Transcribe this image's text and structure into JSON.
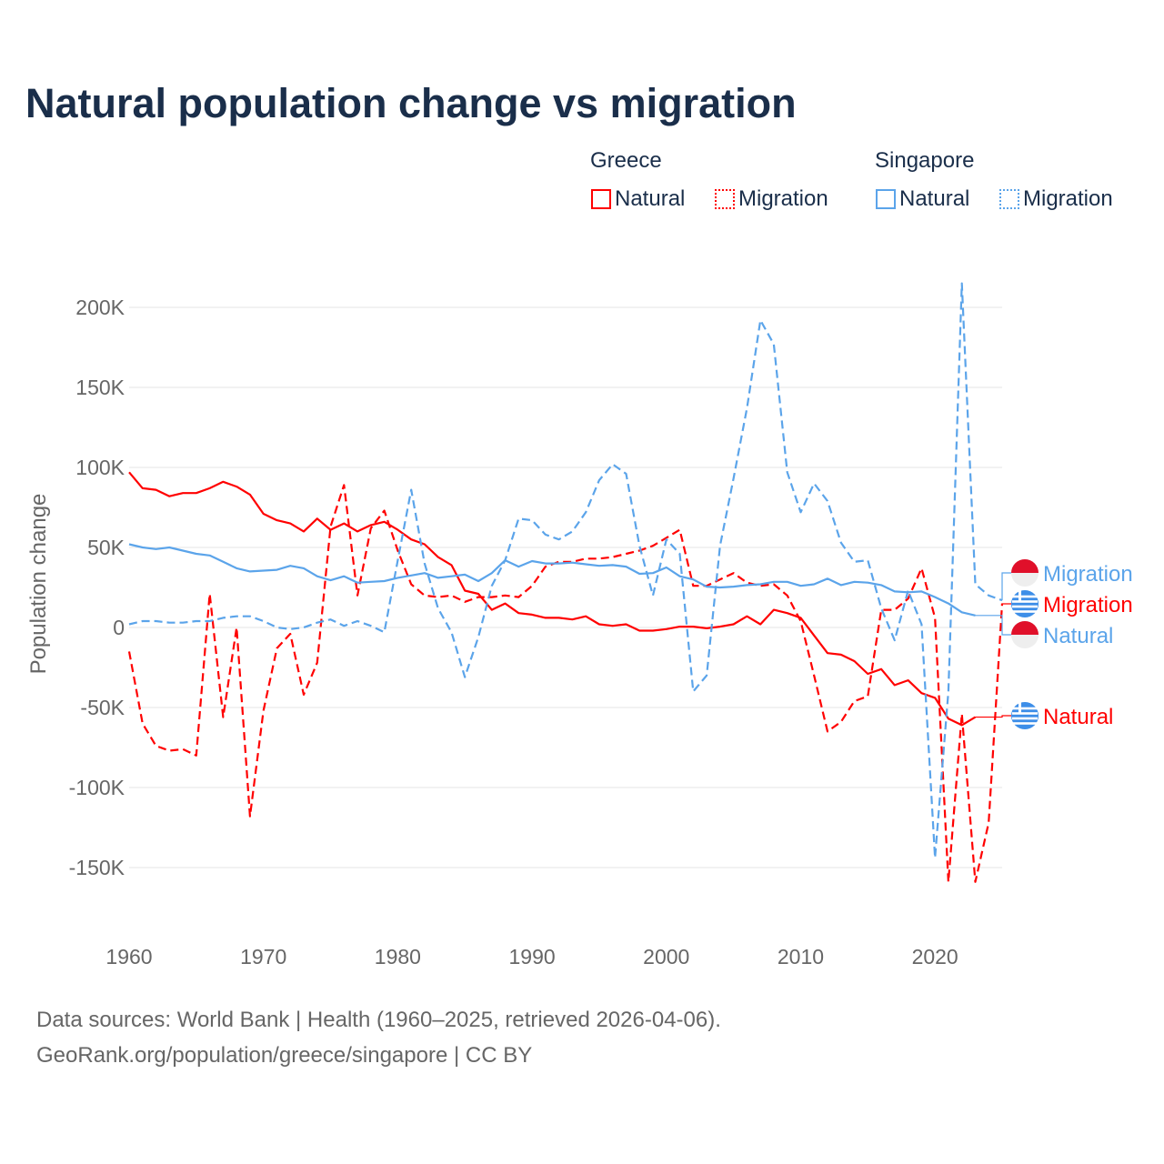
{
  "title": "Natural population change vs migration",
  "legend": {
    "groups": [
      {
        "name": "Greece",
        "color": "#ff0000",
        "items": [
          "Natural",
          "Migration"
        ]
      },
      {
        "name": "Singapore",
        "color": "#5ba4ea",
        "items": [
          "Natural",
          "Migration"
        ]
      }
    ]
  },
  "source_lines": [
    "Data sources: World Bank | Health (1960–2025, retrieved 2026-04-06).",
    "GeoRank.org/population/greece/singapore | CC BY"
  ],
  "chart_data": {
    "type": "line",
    "title": "Natural population change vs migration",
    "xlabel": "",
    "ylabel": "Population change",
    "xlim": [
      1960,
      2025
    ],
    "ylim": [
      -170000,
      220000
    ],
    "xticks": [
      1960,
      1970,
      1980,
      1990,
      2000,
      2010,
      2020
    ],
    "xtick_labels": [
      "1960",
      "1970",
      "1980",
      "1990",
      "2000",
      "2010",
      "2020"
    ],
    "yticks": [
      200000,
      150000,
      100000,
      50000,
      0,
      -50000,
      -100000,
      -150000
    ],
    "ytick_labels": [
      "200K",
      "150K",
      "100K",
      "50K",
      "0",
      "-50K",
      "-100K",
      "-150K"
    ],
    "grid": true,
    "legend_placement": "top-right",
    "series": [
      {
        "name": "Greece Natural",
        "label": "Natural",
        "country": "Greece",
        "flag": "greece-flag",
        "color": "#ff0000",
        "dash": false,
        "start": 1960,
        "values": [
          97,
          87,
          86,
          82,
          84,
          84,
          87,
          91,
          88,
          83,
          71,
          67,
          65,
          60,
          68,
          61,
          65,
          60,
          64,
          66,
          61,
          55,
          52,
          44,
          39,
          23,
          21,
          11,
          15,
          9,
          8,
          6,
          6,
          5,
          7,
          2,
          1,
          2,
          -2,
          -2,
          -1,
          0.5,
          0.5,
          -0.5,
          0.5,
          2,
          7,
          2,
          11,
          9,
          6,
          -5,
          -16,
          -17,
          -21,
          -29,
          -26,
          -36,
          -33,
          -41,
          -44,
          -57,
          -61,
          -56
        ]
      },
      {
        "name": "Greece Migration",
        "label": "Migration",
        "country": "Greece",
        "flag": "greece-flag",
        "color": "#ff0000",
        "dash": true,
        "start": 1960,
        "values": [
          -15,
          -60,
          -74,
          -77,
          -76,
          -80,
          21,
          -56,
          0,
          -118,
          -52,
          -13,
          -4,
          -42,
          -22,
          63,
          89,
          20,
          62,
          73,
          48,
          27,
          20,
          19,
          20,
          16,
          19,
          19,
          20,
          19,
          26,
          38,
          41,
          41,
          43,
          43,
          44,
          46,
          48,
          51,
          56,
          61,
          26,
          26,
          30,
          34,
          28,
          26,
          27,
          20,
          4,
          -30,
          -65,
          -59,
          -46,
          -43,
          11,
          11,
          18,
          37,
          6,
          -159,
          -54,
          -159,
          -122,
          15
        ]
      },
      {
        "name": "Singapore Natural",
        "label": "Natural",
        "country": "Singapore",
        "flag": "singapore-flag",
        "color": "#5ba4ea",
        "dash": false,
        "start": 1960,
        "values": [
          52,
          50,
          49,
          50,
          48,
          46,
          45,
          41,
          37,
          35,
          35.5,
          36,
          38.5,
          37,
          32,
          29.5,
          32,
          28,
          28.5,
          29,
          31,
          32.5,
          34,
          31,
          32,
          33,
          29,
          34,
          42,
          38,
          41.5,
          40,
          40,
          40.5,
          39.5,
          38.5,
          39,
          38,
          33.5,
          34,
          37.5,
          32,
          30,
          25.5,
          25,
          25.5,
          26.5,
          27,
          28.5,
          28.5,
          26,
          27,
          30.5,
          26.5,
          28.5,
          28,
          26.5,
          22.5,
          22,
          22.5,
          19,
          15,
          9.5,
          7.5
        ]
      },
      {
        "name": "Singapore Migration",
        "label": "Migration",
        "country": "Singapore",
        "flag": "singapore-flag",
        "color": "#5ba4ea",
        "dash": true,
        "start": 1960,
        "values": [
          2,
          4,
          4,
          3,
          3,
          4,
          4,
          6,
          7,
          7,
          4,
          0,
          -1,
          0,
          3,
          5,
          1,
          4,
          1,
          -3,
          42,
          86,
          40,
          12,
          -3,
          -31,
          -6,
          26,
          42,
          68,
          67,
          58,
          55,
          60,
          72,
          92,
          102,
          96,
          51,
          20,
          55,
          46,
          -40,
          -30,
          51,
          93,
          137,
          192,
          177,
          97,
          72,
          90,
          79,
          53,
          41,
          42,
          12,
          -8,
          23,
          2,
          -144,
          -40,
          215,
          27,
          20,
          17
        ]
      }
    ],
    "value_unit": "thousands"
  }
}
